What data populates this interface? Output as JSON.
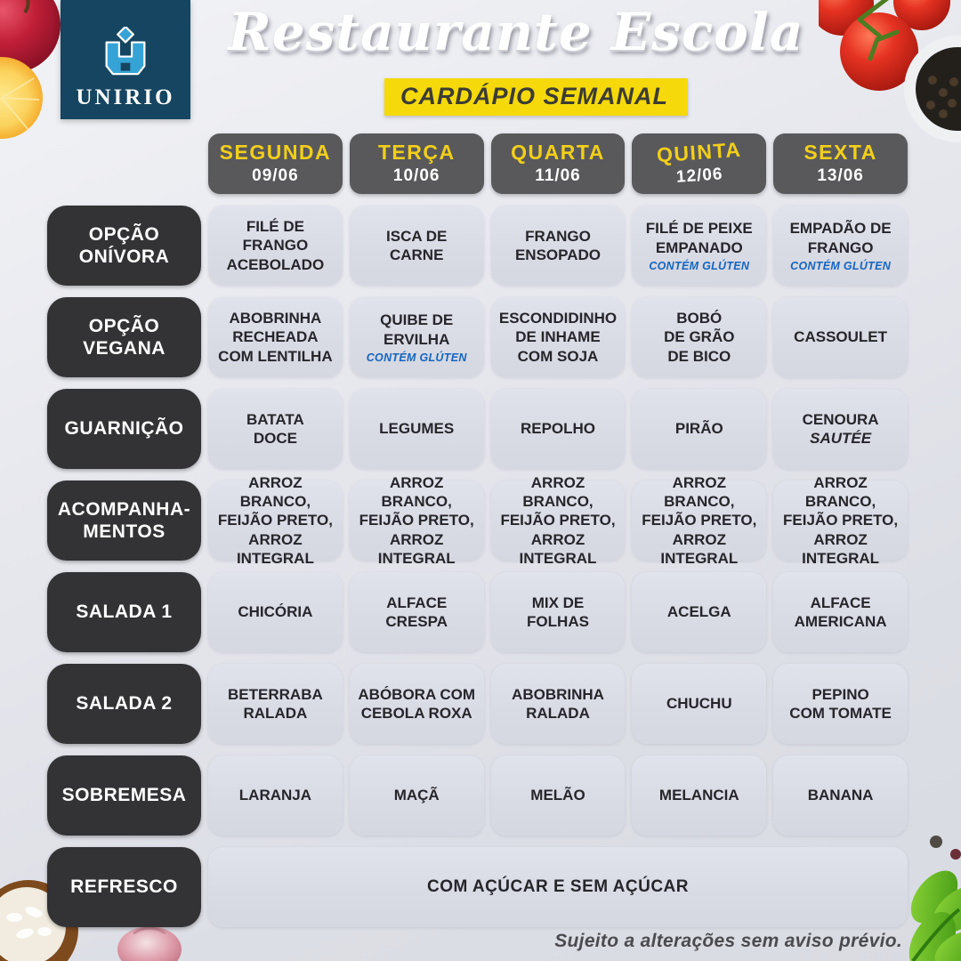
{
  "header": {
    "logo_text": "UNIRIO",
    "title": "Restaurante Escola",
    "subtitle": "CARDÁPIO SEMANAL"
  },
  "days": [
    {
      "label": "SEGUNDA",
      "date": "09/06"
    },
    {
      "label": "TERÇA",
      "date": "10/06"
    },
    {
      "label": "QUARTA",
      "date": "11/06"
    },
    {
      "label": "QUINTA",
      "date": "12/06"
    },
    {
      "label": "SEXTA",
      "date": "13/06"
    }
  ],
  "rows": [
    {
      "label": "OPÇÃO\nONÍVORA",
      "cells": [
        {
          "text": "FILÉ DE FRANGO\nACEBOLADO"
        },
        {
          "text": "ISCA DE\nCARNE"
        },
        {
          "text": "FRANGO\nENSOPADO"
        },
        {
          "text": "FILÉ DE PEIXE\nEMPANADO",
          "note": "CONTÉM GLÚTEN"
        },
        {
          "text": "EMPADÃO DE\nFRANGO",
          "note": "CONTÉM GLÚTEN"
        }
      ]
    },
    {
      "label": "OPÇÃO\nVEGANA",
      "cells": [
        {
          "text": "ABOBRINHA\nRECHEADA\nCOM LENTILHA"
        },
        {
          "text": "QUIBE DE\nERVILHA",
          "note": "CONTÉM GLÚTEN"
        },
        {
          "text": "ESCONDIDINHO\nDE INHAME\nCOM SOJA"
        },
        {
          "text": "BOBÓ\nDE GRÃO\nDE BICO"
        },
        {
          "text": "CASSOULET"
        }
      ]
    },
    {
      "label": "GUARNIÇÃO",
      "cells": [
        {
          "text": "BATATA\nDOCE"
        },
        {
          "text": "LEGUMES"
        },
        {
          "text": "REPOLHO"
        },
        {
          "text": "PIRÃO"
        },
        {
          "text": "CENOURA",
          "italic": "SAUTÉE"
        }
      ]
    },
    {
      "label": "ACOMPANHA-\nMENTOS",
      "cells": [
        {
          "text": "ARROZ BRANCO,\nFEIJÃO PRETO,\nARROZ INTEGRAL"
        },
        {
          "text": "ARROZ BRANCO,\nFEIJÃO PRETO,\nARROZ INTEGRAL"
        },
        {
          "text": "ARROZ BRANCO,\nFEIJÃO PRETO,\nARROZ INTEGRAL"
        },
        {
          "text": "ARROZ BRANCO,\nFEIJÃO PRETO,\nARROZ INTEGRAL"
        },
        {
          "text": "ARROZ BRANCO,\nFEIJÃO PRETO,\nARROZ INTEGRAL"
        }
      ]
    },
    {
      "label": "SALADA 1",
      "cells": [
        {
          "text": "CHICÓRIA"
        },
        {
          "text": "ALFACE\nCRESPA"
        },
        {
          "text": "MIX DE\nFOLHAS"
        },
        {
          "text": "ACELGA"
        },
        {
          "text": "ALFACE\nAMERICANA"
        }
      ]
    },
    {
      "label": "SALADA 2",
      "cells": [
        {
          "text": "BETERRABA\nRALADA"
        },
        {
          "text": "ABÓBORA COM\nCEBOLA ROXA"
        },
        {
          "text": "ABOBRINHA\nRALADA"
        },
        {
          "text": "CHUCHU"
        },
        {
          "text": "PEPINO\nCOM TOMATE"
        }
      ]
    },
    {
      "label": "SOBREMESA",
      "cells": [
        {
          "text": "LARANJA"
        },
        {
          "text": "MAÇÃ"
        },
        {
          "text": "MELÃO"
        },
        {
          "text": "MELANCIA"
        },
        {
          "text": "BANANA"
        }
      ]
    }
  ],
  "refresco": {
    "label": "REFRESCO",
    "text": "COM AÇÚCAR E SEM AÇÚCAR"
  },
  "footer": "Sujeito a alterações sem aviso prévio.",
  "colors": {
    "logo_navy": "#154560",
    "banner_yellow": "#f5d90a",
    "day_name_yellow": "#f2cf1a",
    "day_header_bg": "#59595c",
    "row_label_bg": "#333336",
    "cell_bg": "#dcdee8",
    "gluten_note_blue": "#1565c0"
  }
}
